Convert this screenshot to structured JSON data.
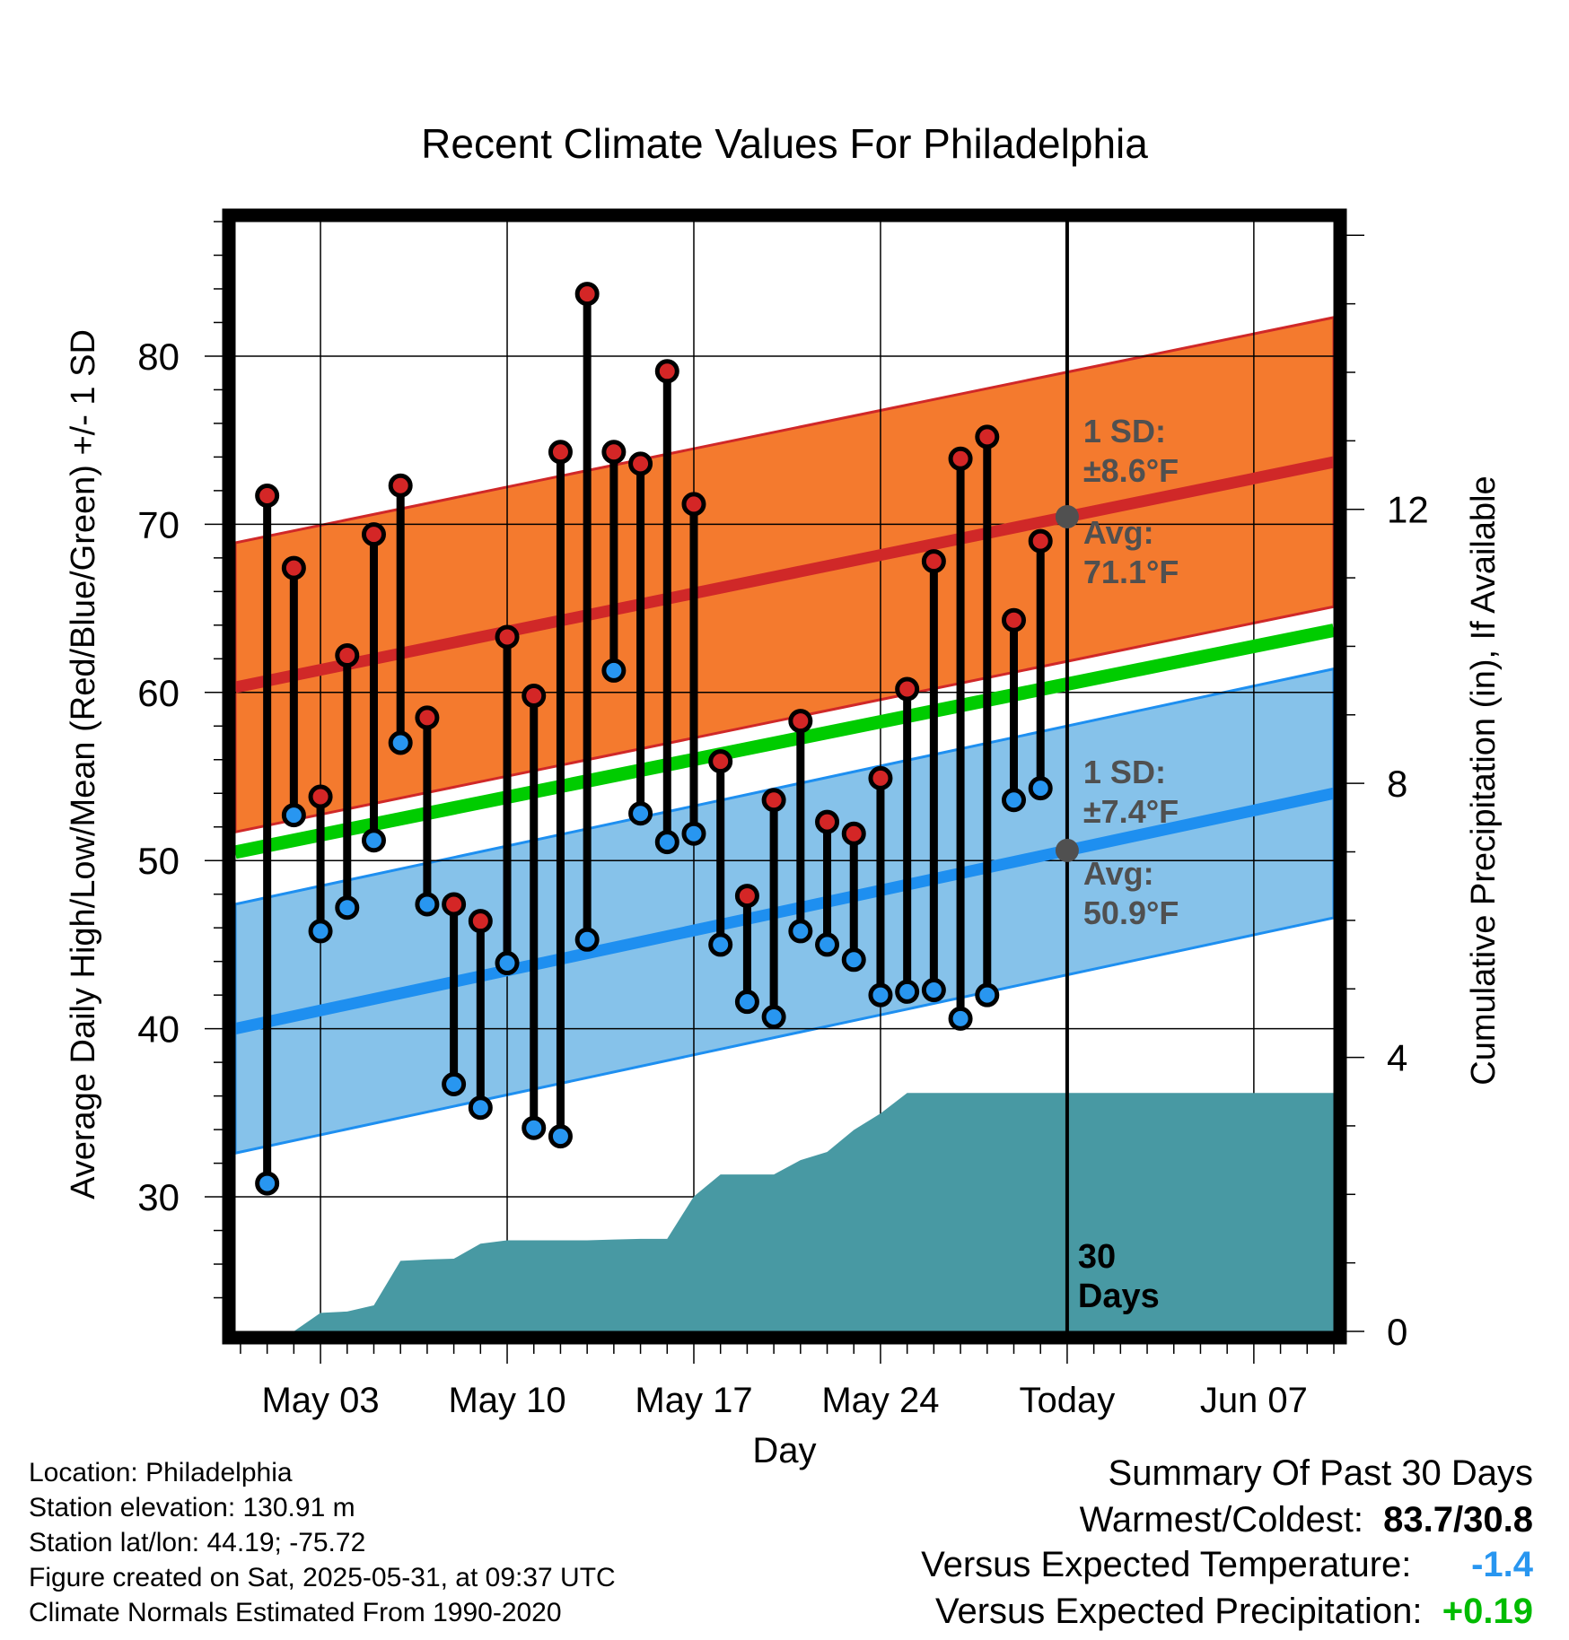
{
  "chart_data": {
    "type": "line",
    "title": "Recent Climate Values For Philadelphia",
    "xlabel": "Day",
    "ylabel_left": "Average Daily High/Low/Mean (Red/Blue/Green) +/- 1 SD",
    "ylabel_right": "Cumulative Precipitation (in), If Available",
    "x_tick_labels": [
      "May 03",
      "May 10",
      "May 17",
      "May 24",
      "Today",
      "Jun 07"
    ],
    "x_tick_days": [
      3,
      10,
      17,
      24,
      31,
      38
    ],
    "xlim_days": [
      -0.2,
      41
    ],
    "ylim_left": [
      22,
      88
    ],
    "y_ticks_left": [
      30,
      40,
      50,
      60,
      70,
      80
    ],
    "ylim_right": [
      0,
      16.2
    ],
    "y_ticks_right": [
      0,
      4,
      8,
      12
    ],
    "today_day": 31,
    "grid": true,
    "observations": {
      "days": [
        1,
        2,
        3,
        4,
        5,
        6,
        7,
        8,
        9,
        10,
        11,
        12,
        13,
        14,
        15,
        16,
        17,
        18,
        19,
        20,
        21,
        22,
        23,
        24,
        25,
        26,
        27,
        28,
        29,
        30
      ],
      "high": [
        71.7,
        67.4,
        53.8,
        62.2,
        69.4,
        72.3,
        58.5,
        47.4,
        46.4,
        63.3,
        59.8,
        74.3,
        83.7,
        74.3,
        73.6,
        79.1,
        71.2,
        55.9,
        47.9,
        53.6,
        58.3,
        52.3,
        51.6,
        54.9,
        60.2,
        67.8,
        73.9,
        75.2,
        64.3,
        69.0
      ],
      "low": [
        30.8,
        52.7,
        45.8,
        47.2,
        51.2,
        57.0,
        47.4,
        36.7,
        35.3,
        43.9,
        34.1,
        33.6,
        45.3,
        61.3,
        52.8,
        51.1,
        51.6,
        45.0,
        41.6,
        40.7,
        45.8,
        45.0,
        44.1,
        42.0,
        42.2,
        42.3,
        40.6,
        42.0,
        53.6,
        54.3
      ]
    },
    "normal_high": {
      "start": 60.3,
      "end": 73.7,
      "sd": 8.6
    },
    "normal_low": {
      "start": 40.0,
      "end": 54.0,
      "sd": 7.4
    },
    "normal_mean": {
      "start": 50.5,
      "end": 63.7
    },
    "precip_cumulative": {
      "days": [
        0,
        1,
        2,
        3,
        4,
        5,
        6,
        7,
        8,
        9,
        10,
        11,
        12,
        13,
        14,
        15,
        16,
        17,
        18,
        19,
        20,
        21,
        22,
        23,
        24,
        25,
        26,
        27,
        28,
        29,
        30,
        41
      ],
      "values": [
        0,
        0,
        0,
        0.27,
        0.29,
        0.38,
        1.03,
        1.05,
        1.06,
        1.28,
        1.33,
        1.33,
        1.33,
        1.33,
        1.34,
        1.35,
        1.35,
        1.97,
        2.29,
        2.29,
        2.29,
        2.5,
        2.62,
        2.94,
        3.18,
        3.48,
        3.48,
        3.48,
        3.48,
        3.48,
        3.48,
        3.48
      ]
    },
    "annotations": {
      "high_sd_label": "1 SD:",
      "high_sd_value": "±8.6°F",
      "high_avg_label": "Avg:",
      "high_avg_value": "71.1°F",
      "low_sd_label": "1 SD:",
      "low_sd_value": "±7.4°F",
      "low_avg_label": "Avg:",
      "low_avg_value": "50.9°F",
      "days_line1": "30",
      "days_line2": "Days"
    },
    "colors": {
      "high_band": "#f47a2e",
      "high_line": "#d02828",
      "low_band": "#86c2ea",
      "low_line": "#1e8ff0",
      "mean_line": "#00cc00",
      "precip": "#4899a3",
      "high_dot": "#d42626",
      "low_dot": "#2896f0",
      "annotation": "#505050"
    }
  },
  "info": {
    "location": "Location: Philadelphia",
    "elevation": "Station elevation: 130.91 m",
    "latlon": "Station lat/lon: 44.19; -75.72",
    "created": "Figure created on Sat, 2025-05-31, at 09:37 UTC",
    "normals": "Climate Normals Estimated From 1990-2020"
  },
  "summary": {
    "heading": "Summary Of Past 30 Days",
    "warmest_label": "Warmest/Coldest:",
    "warmest_value": "83.7/30.8",
    "temp_label": "Versus Expected Temperature:",
    "temp_value": "-1.4",
    "temp_color": "#2896f0",
    "precip_label": "Versus Expected Precipitation:",
    "precip_value": "+0.19",
    "precip_color": "#00bb00"
  }
}
